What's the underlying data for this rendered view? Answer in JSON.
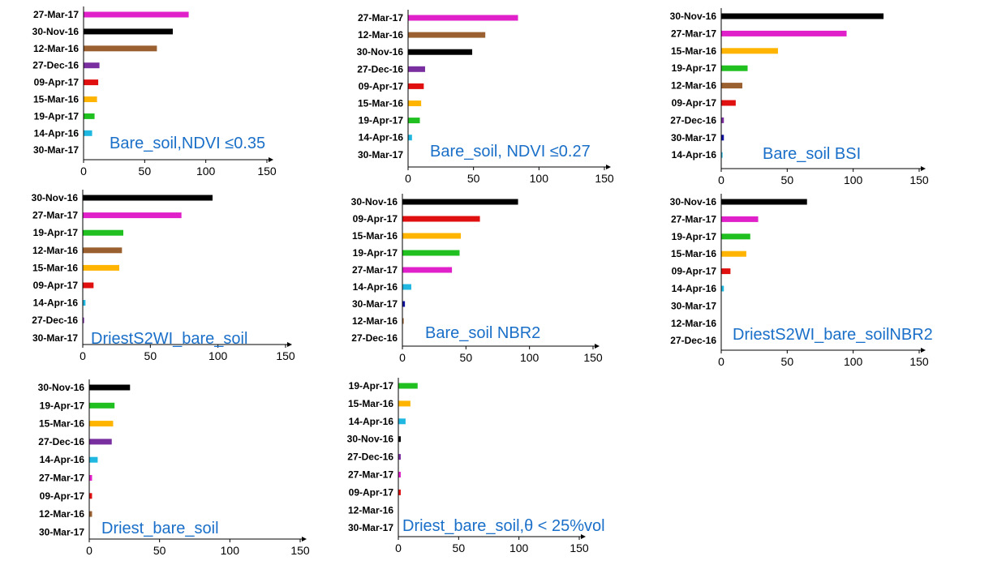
{
  "colors": {
    "27-Mar-17": "#e020c8",
    "30-Nov-16": "#000000",
    "12-Mar-16": "#9a6030",
    "27-Dec-16": "#7a2fa0",
    "09-Apr-17": "#e01010",
    "15-Mar-16": "#ffb400",
    "19-Apr-17": "#20c020",
    "14-Apr-16": "#20b8e0",
    "30-Mar-17": "#1010a0",
    "annotation": "#1a6fc8"
  },
  "chart_data": [
    {
      "type": "bar",
      "orientation": "horizontal",
      "annotation": "Bare_soil,NDVI ≤0.35",
      "categories": [
        "27-Mar-17",
        "30-Nov-16",
        "12-Mar-16",
        "27-Dec-16",
        "09-Apr-17",
        "15-Mar-16",
        "19-Apr-17",
        "14-Apr-16",
        "30-Mar-17"
      ],
      "values": [
        86,
        73,
        60,
        13,
        12,
        11,
        9,
        7,
        0
      ],
      "xticks": [
        0,
        50,
        100,
        150
      ],
      "xlim": [
        0,
        150
      ]
    },
    {
      "type": "bar",
      "orientation": "horizontal",
      "annotation": "Bare_soil, NDVI ≤0.27",
      "categories": [
        "27-Mar-17",
        "12-Mar-16",
        "30-Nov-16",
        "27-Dec-16",
        "09-Apr-17",
        "15-Mar-16",
        "19-Apr-17",
        "14-Apr-16",
        "30-Mar-17"
      ],
      "values": [
        84,
        59,
        49,
        13,
        12,
        10,
        9,
        3,
        0
      ],
      "xticks": [
        0,
        50,
        100,
        150
      ],
      "xlim": [
        0,
        150
      ]
    },
    {
      "type": "bar",
      "orientation": "horizontal",
      "annotation": "Bare_soil BSI",
      "categories": [
        "30-Nov-16",
        "27-Mar-17",
        "15-Mar-16",
        "19-Apr-17",
        "12-Mar-16",
        "09-Apr-17",
        "27-Dec-16",
        "30-Mar-17",
        "14-Apr-16"
      ],
      "values": [
        123,
        95,
        43,
        20,
        16,
        11,
        2,
        2,
        1
      ],
      "xticks": [
        0,
        50,
        100,
        150
      ],
      "xlim": [
        0,
        150
      ]
    },
    {
      "type": "bar",
      "orientation": "horizontal",
      "annotation": "DriestS2WI_bare_soil",
      "categories": [
        "30-Nov-16",
        "27-Mar-17",
        "19-Apr-17",
        "12-Mar-16",
        "15-Mar-16",
        "09-Apr-17",
        "14-Apr-16",
        "27-Dec-16",
        "30-Mar-17"
      ],
      "values": [
        96,
        73,
        30,
        29,
        27,
        8,
        2,
        1,
        0
      ],
      "xticks": [
        0,
        50,
        100,
        150
      ],
      "xlim": [
        0,
        150
      ]
    },
    {
      "type": "bar",
      "orientation": "horizontal",
      "annotation": "Bare_soil NBR2",
      "categories": [
        "30-Nov-16",
        "09-Apr-17",
        "15-Mar-16",
        "19-Apr-17",
        "27-Mar-17",
        "14-Apr-16",
        "30-Mar-17",
        "12-Mar-16",
        "27-Dec-16"
      ],
      "values": [
        91,
        61,
        46,
        45,
        39,
        7,
        2,
        1,
        0
      ],
      "xticks": [
        0,
        50,
        100,
        150
      ],
      "xlim": [
        0,
        150
      ]
    },
    {
      "type": "bar",
      "orientation": "horizontal",
      "annotation": "DriestS2WI_bare_soilNBR2",
      "categories": [
        "30-Nov-16",
        "27-Mar-17",
        "19-Apr-17",
        "15-Mar-16",
        "09-Apr-17",
        "14-Apr-16",
        "30-Mar-17",
        "12-Mar-16",
        "27-Dec-16"
      ],
      "values": [
        65,
        28,
        22,
        19,
        7,
        2,
        0,
        0,
        0
      ],
      "xticks": [
        0,
        50,
        100,
        150
      ],
      "xlim": [
        0,
        150
      ]
    },
    {
      "type": "bar",
      "orientation": "horizontal",
      "annotation": "Driest_bare_soil",
      "categories": [
        "30-Nov-16",
        "19-Apr-17",
        "15-Mar-16",
        "27-Dec-16",
        "14-Apr-16",
        "27-Mar-17",
        "09-Apr-17",
        "12-Mar-16",
        "30-Mar-17"
      ],
      "values": [
        29,
        18,
        17,
        16,
        6,
        2,
        2,
        2,
        0
      ],
      "xticks": [
        0,
        50,
        100,
        150
      ],
      "xlim": [
        0,
        150
      ]
    },
    {
      "type": "bar",
      "orientation": "horizontal",
      "annotation": "Driest_bare_soil,θ < 25%vol",
      "categories": [
        "19-Apr-17",
        "15-Mar-16",
        "14-Apr-16",
        "30-Nov-16",
        "27-Dec-16",
        "27-Mar-17",
        "09-Apr-17",
        "12-Mar-16",
        "30-Mar-17"
      ],
      "values": [
        16,
        10,
        6,
        2,
        2,
        2,
        2,
        0,
        0
      ],
      "xticks": [
        0,
        50,
        100,
        150
      ],
      "xlim": [
        0,
        150
      ]
    }
  ]
}
